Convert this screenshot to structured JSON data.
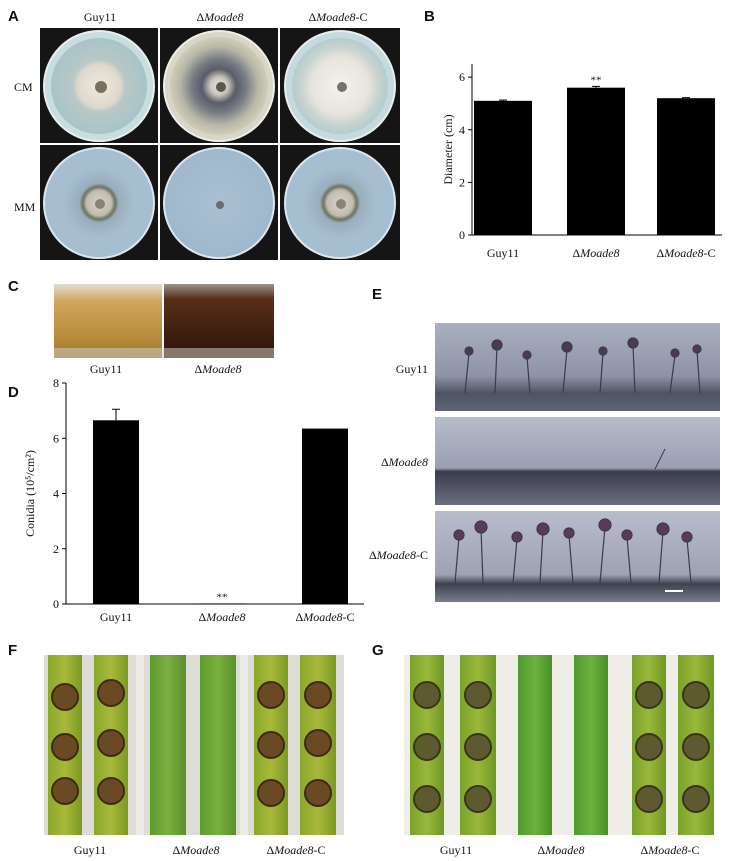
{
  "panels": {
    "A": {
      "label": "A",
      "columns": [
        {
          "prefix": "",
          "italic": "",
          "suffix": "Guy11"
        },
        {
          "prefix": "Δ",
          "italic": "Moade8",
          "suffix": ""
        },
        {
          "prefix": "Δ",
          "italic": "Moade8",
          "suffix": "-C"
        }
      ],
      "rows": [
        "CM",
        "MM"
      ]
    },
    "C": {
      "label": "C",
      "captions": [
        {
          "prefix": "",
          "italic": "",
          "suffix": "Guy11"
        },
        {
          "prefix": "Δ",
          "italic": "Moade8",
          "suffix": ""
        }
      ]
    },
    "E": {
      "label": "E",
      "rows": [
        {
          "prefix": "",
          "italic": "",
          "suffix": "Guy11"
        },
        {
          "prefix": "Δ",
          "italic": "Moade8",
          "suffix": ""
        },
        {
          "prefix": "Δ",
          "italic": "Moade8",
          "suffix": "-C"
        }
      ]
    },
    "F": {
      "label": "F",
      "captions": [
        {
          "prefix": "",
          "italic": "",
          "suffix": "Guy11"
        },
        {
          "prefix": "Δ",
          "italic": "Moade8",
          "suffix": ""
        },
        {
          "prefix": "Δ",
          "italic": "Moade8",
          "suffix": "-C"
        }
      ]
    },
    "G": {
      "label": "G",
      "captions": [
        {
          "prefix": "",
          "italic": "",
          "suffix": "Guy11"
        },
        {
          "prefix": "Δ",
          "italic": "Moade8",
          "suffix": ""
        },
        {
          "prefix": "Δ",
          "italic": "Moade8",
          "suffix": "-C"
        }
      ]
    }
  },
  "chart_data": [
    {
      "panel": "B",
      "type": "bar",
      "categories": [
        "Guy11",
        "ΔMoade8",
        "ΔMoade8-C"
      ],
      "category_parts": [
        {
          "prefix": "",
          "italic": "",
          "suffix": "Guy11"
        },
        {
          "prefix": "Δ",
          "italic": "Moade8",
          "suffix": ""
        },
        {
          "prefix": "Δ",
          "italic": "Moade8",
          "suffix": "-C"
        }
      ],
      "values": [
        5.1,
        5.6,
        5.2
      ],
      "errors": [
        0.03,
        0.05,
        0.02
      ],
      "annotations": [
        "",
        "**",
        ""
      ],
      "ylabel": "Diameter (cm)",
      "xlabel": "",
      "ylim": [
        0,
        6.5
      ],
      "yticks": [
        0,
        2,
        4,
        6
      ],
      "bar_color": "#000000"
    },
    {
      "panel": "D",
      "type": "bar",
      "categories": [
        "Guy11",
        "ΔMoade8",
        "ΔMoade8-C"
      ],
      "category_parts": [
        {
          "prefix": "",
          "italic": "",
          "suffix": "Guy11"
        },
        {
          "prefix": "Δ",
          "italic": "Moade8",
          "suffix": ""
        },
        {
          "prefix": "Δ",
          "italic": "Moade8",
          "suffix": "-C"
        }
      ],
      "values": [
        6.65,
        0.02,
        6.35
      ],
      "errors": [
        0.4,
        0,
        0
      ],
      "annotations": [
        "",
        "**",
        ""
      ],
      "ylabel": "Conidia (10⁵/cm²)",
      "xlabel": "",
      "ylim": [
        0,
        8
      ],
      "yticks": [
        0,
        2,
        4,
        6,
        8
      ],
      "bar_color": "#000000"
    }
  ]
}
